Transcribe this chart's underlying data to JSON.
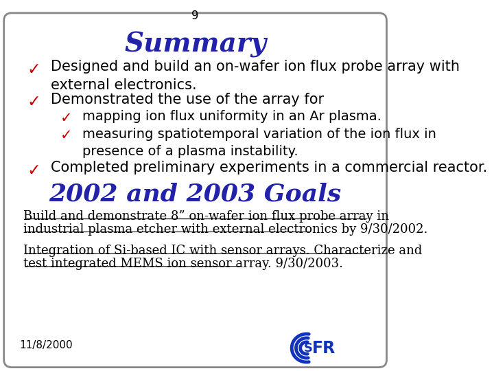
{
  "page_number": "9",
  "title": "Summary",
  "title_color": "#2222AA",
  "title_fontsize": 28,
  "bullet_color": "#CC0000",
  "bullet_char": "✓",
  "bullet_fontsize": 15,
  "text_color": "#000000",
  "bg_color": "#FFFFFF",
  "border_color": "#888888",
  "bullets": [
    "Designed and build an on-wafer ion flux probe array with\nexternal electronics.",
    "Demonstrated the use of the array for",
    "Completed preliminary experiments in a commercial reactor."
  ],
  "sub_bullets": [
    "mapping ion flux uniformity in an Ar plasma.",
    "measuring spatiotemporal variation of the ion flux in\npresence of a plasma instability."
  ],
  "goals_title": "2002 and 2003 Goals",
  "goals_title_color": "#2222AA",
  "goals_title_fontsize": 26,
  "goal1_line1": "Build and demonstrate 8” on-wafer ion flux probe array in",
  "goal1_line2": "industrial plasma etcher with external electronics by 9/30/2002.",
  "goal2_line1": "Integration of Si-based IC with sensor arrays. Characterize and",
  "goal2_line2": "test integrated MEMS ion sensor array. 9/30/2003.",
  "goal_fontsize": 13,
  "footer_date": "11/8/2000",
  "footer_fontsize": 11
}
